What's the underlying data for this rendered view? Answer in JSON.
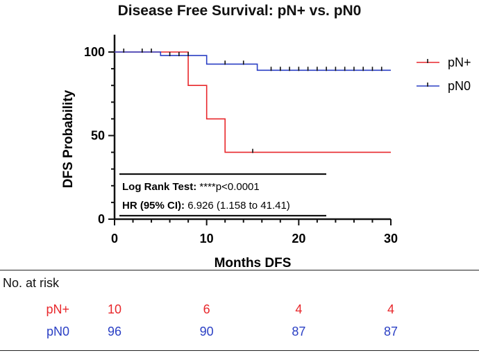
{
  "chart_data": {
    "type": "line",
    "subtype": "kaplan-meier-step",
    "title": "Disease Free Survival: pN+ vs. pN0",
    "xlabel": "Months DFS",
    "ylabel": "DFS Probability",
    "xlim": [
      0,
      30
    ],
    "ylim": [
      0,
      100
    ],
    "xticks": [
      0,
      10,
      20,
      30
    ],
    "yticks": [
      0,
      50,
      100
    ],
    "grid": false,
    "legend_position": "top-right",
    "series": [
      {
        "name": "pN+",
        "color": "#e8272b",
        "steps": [
          [
            0,
            100
          ],
          [
            8,
            100
          ],
          [
            8,
            80
          ],
          [
            10,
            80
          ],
          [
            10,
            60
          ],
          [
            12,
            60
          ],
          [
            12,
            40
          ],
          [
            30,
            40
          ]
        ],
        "censored": [
          [
            15,
            40
          ]
        ]
      },
      {
        "name": "pN0",
        "color": "#2a3fc4",
        "steps": [
          [
            0,
            100
          ],
          [
            5,
            100
          ],
          [
            5,
            97.9
          ],
          [
            10,
            97.9
          ],
          [
            10,
            92.8
          ],
          [
            15.5,
            92.8
          ],
          [
            15.5,
            89.1
          ],
          [
            30,
            89.1
          ]
        ],
        "censored": [
          [
            1,
            100
          ],
          [
            3,
            100
          ],
          [
            4,
            100
          ],
          [
            6,
            97.9
          ],
          [
            7,
            97.9
          ],
          [
            8,
            97.9
          ],
          [
            12,
            92.8
          ],
          [
            14,
            92.8
          ],
          [
            17,
            89.1
          ],
          [
            18,
            89.1
          ],
          [
            19,
            89.1
          ],
          [
            20,
            89.1
          ],
          [
            21,
            89.1
          ],
          [
            22,
            89.1
          ],
          [
            23,
            89.1
          ],
          [
            24,
            89.1
          ],
          [
            25,
            89.1
          ],
          [
            26,
            89.1
          ],
          [
            27,
            89.1
          ],
          [
            28,
            89.1
          ],
          [
            29,
            89.1
          ]
        ]
      }
    ],
    "annotation": {
      "test_label": "Log Rank Test:",
      "test_value": "****p<0.0001",
      "hr_label": "HR (95% CI):",
      "hr_value": "6.926 (1.158 to 41.41)"
    },
    "risk_table": {
      "header": "No. at risk",
      "times": [
        0,
        10,
        20,
        30
      ],
      "rows": [
        {
          "name": "pN+",
          "color": "#e8272b",
          "values": [
            "10",
            "6",
            "4",
            "4"
          ]
        },
        {
          "name": "pN0",
          "color": "#2a3fc4",
          "values": [
            "96",
            "90",
            "87",
            "87"
          ]
        }
      ]
    }
  }
}
